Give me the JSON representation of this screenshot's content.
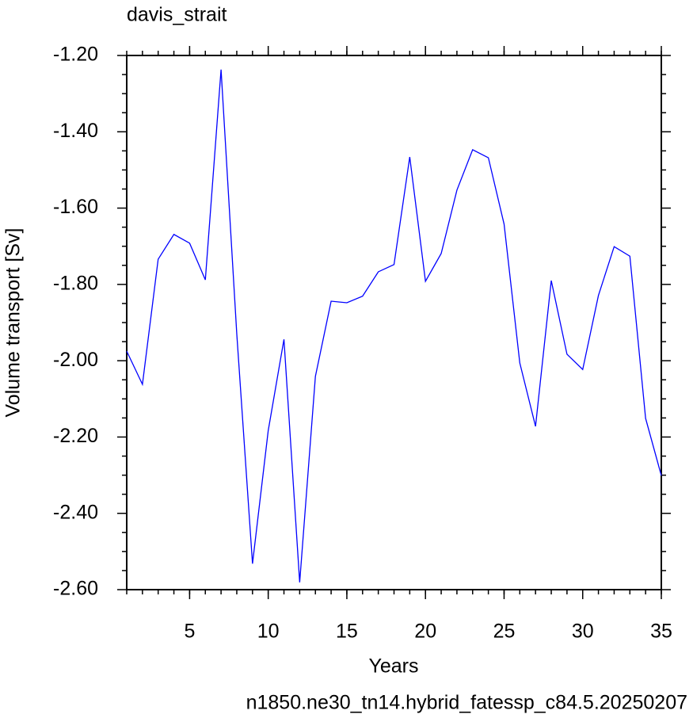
{
  "chart_data": {
    "type": "line",
    "title": "davis_strait",
    "subtitle": "n1850.ne30_tn14.hybrid_fatessp_c84.5.20250207",
    "x_label": "Years",
    "y_label": "Volume transport [Sv]",
    "x": [
      1,
      2,
      3,
      4,
      5,
      6,
      7,
      8,
      9,
      10,
      11,
      12,
      13,
      14,
      15,
      16,
      17,
      18,
      19,
      20,
      21,
      22,
      23,
      24,
      25,
      26,
      27,
      28,
      29,
      30,
      31,
      32,
      33,
      34,
      35
    ],
    "series": [
      {
        "color": "#0000ff",
        "values": [
          -1.975,
          -2.062,
          -1.734,
          -1.669,
          -1.692,
          -1.788,
          -1.237,
          -1.93,
          -2.532,
          -2.183,
          -1.944,
          -2.581,
          -2.041,
          -1.844,
          -1.848,
          -1.831,
          -1.767,
          -1.748,
          -1.466,
          -1.792,
          -1.719,
          -1.553,
          -1.447,
          -1.468,
          -1.642,
          -2.006,
          -2.172,
          -1.79,
          -1.983,
          -2.023,
          -1.829,
          -1.701,
          -1.726,
          -2.151,
          -2.301
        ]
      }
    ],
    "xlim": [
      1,
      35
    ],
    "xticks": [
      5,
      10,
      15,
      20,
      25,
      30,
      35
    ],
    "ylim": [
      -2.6,
      -1.2
    ],
    "yticks": [
      {
        "value": -2.6,
        "label": "-2.60"
      },
      {
        "value": -2.4,
        "label": "-2.40"
      },
      {
        "value": -2.2,
        "label": "-2.20"
      },
      {
        "value": -2.0,
        "label": "-2.00"
      },
      {
        "value": -1.8,
        "label": "-1.80"
      },
      {
        "value": -1.6,
        "label": "-1.60"
      },
      {
        "value": -1.4,
        "label": "-1.40"
      },
      {
        "value": -1.2,
        "label": "-1.20"
      }
    ],
    "subtitle_color": "#0000ff"
  }
}
